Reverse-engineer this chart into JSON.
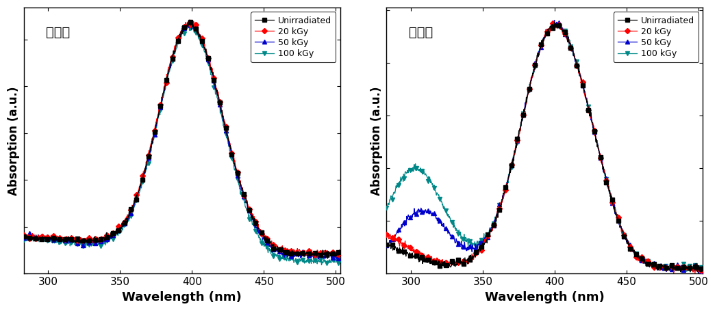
{
  "panel1_title": "전자선",
  "panel2_title": "감마선",
  "xlabel": "Wavelength (nm)",
  "ylabel": "Absorption (a.u.)",
  "x_min": 283,
  "x_max": 503,
  "x_ticks": [
    300,
    350,
    400,
    450,
    500
  ],
  "legend_labels": [
    "Unirradiated",
    "20 kGy",
    "50 kGy",
    "100 kGy"
  ],
  "colors": [
    "#000000",
    "#ff0000",
    "#0000cc",
    "#008888"
  ],
  "markers": [
    "s",
    "D",
    "^",
    "v"
  ],
  "background_color": "#ffffff",
  "noise_scale": 0.006,
  "marker_every": 15
}
